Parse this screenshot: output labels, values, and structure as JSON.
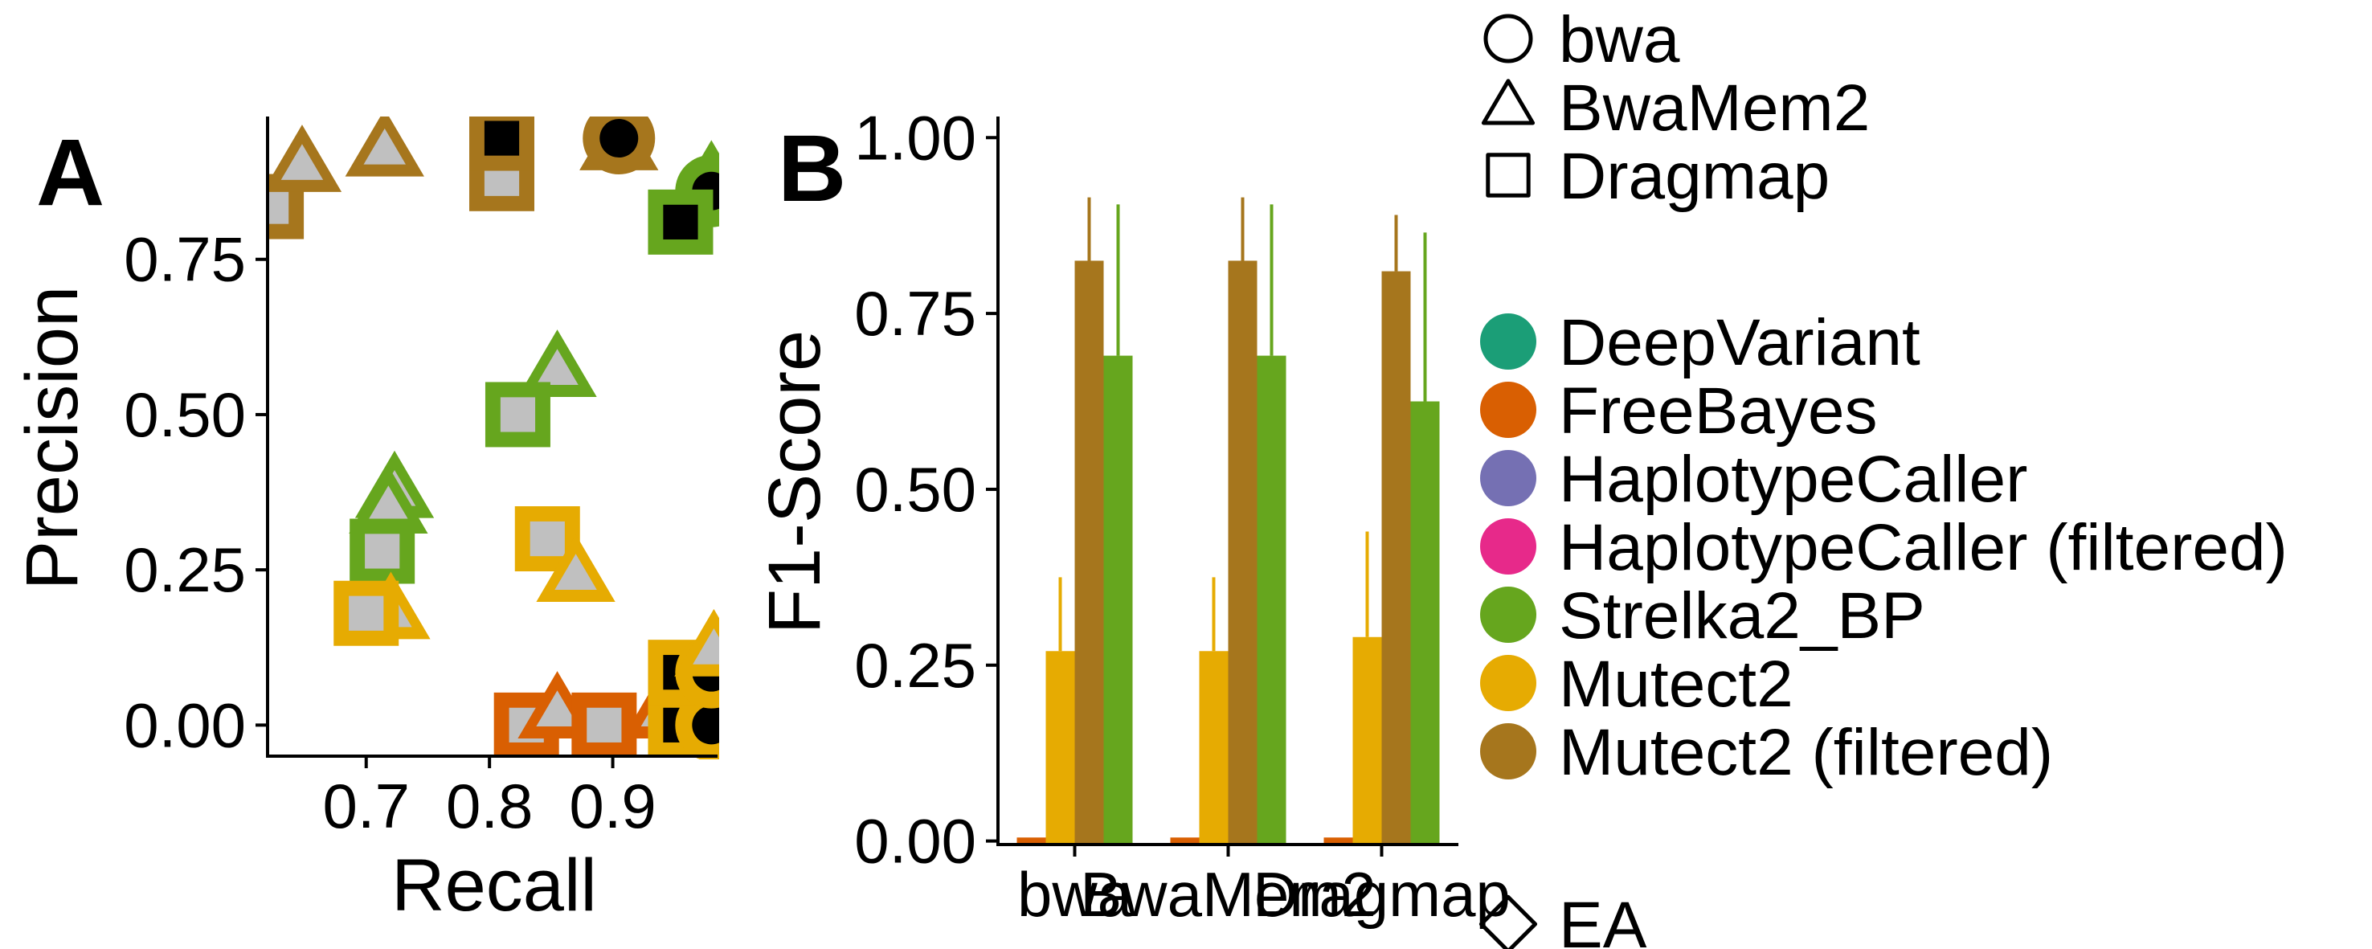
{
  "figure": {
    "panels": [
      {
        "id": "A",
        "label": "A"
      },
      {
        "id": "B",
        "label": "B"
      }
    ]
  },
  "chart_data": [
    {
      "id": "A",
      "type": "scatter",
      "title": "",
      "xlabel": "Recall",
      "ylabel": "Precision",
      "xlim": [
        0.62,
        0.985
      ],
      "ylim": [
        -0.05,
        0.98
      ],
      "xticks": [
        0.7,
        0.8,
        0.9
      ],
      "xtick_labels": [
        "0.7",
        "0.8",
        "0.9"
      ],
      "yticks": [
        0,
        0.25,
        0.5,
        0.75
      ],
      "ytick_labels": [
        "0.00",
        "0.25",
        "0.50",
        "0.75"
      ],
      "grid": false,
      "points": [
        {
          "caller": "Mutect2 (filtered)",
          "aligner": "Dragmap",
          "dataset": "EA",
          "x": 0.623,
          "y": 0.835
        },
        {
          "caller": "Mutect2 (filtered)",
          "aligner": "BwaMem2",
          "dataset": "EA",
          "x": 0.648,
          "y": 0.9
        },
        {
          "caller": "Mutect2 (filtered)",
          "aligner": "BwaMem2",
          "dataset": "EA",
          "x": 0.715,
          "y": 0.925
        },
        {
          "caller": "Mutect2 (filtered)",
          "aligner": "Dragmap",
          "dataset": "EA",
          "x": 0.81,
          "y": 0.88
        },
        {
          "caller": "Mutect2 (filtered)",
          "aligner": "Dragmap",
          "dataset": "other",
          "x": 0.81,
          "y": 0.945
        },
        {
          "caller": "Mutect2 (filtered)",
          "aligner": "BwaMem2",
          "dataset": "EA",
          "x": 0.905,
          "y": 0.935
        },
        {
          "caller": "Mutect2 (filtered)",
          "aligner": "bwa",
          "dataset": "other",
          "x": 0.905,
          "y": 0.945
        },
        {
          "caller": "Strelka2_BP",
          "aligner": "BwaMem2",
          "dataset": "EA",
          "x": 0.98,
          "y": 0.875
        },
        {
          "caller": "Strelka2_BP",
          "aligner": "bwa",
          "dataset": "other",
          "x": 0.98,
          "y": 0.86
        },
        {
          "caller": "Strelka2_BP",
          "aligner": "Dragmap",
          "dataset": "other",
          "x": 0.955,
          "y": 0.81
        },
        {
          "caller": "Strelka2_BP",
          "aligner": "BwaMem2",
          "dataset": "EA",
          "x": 0.855,
          "y": 0.57
        },
        {
          "caller": "Strelka2_BP",
          "aligner": "Dragmap",
          "dataset": "EA",
          "x": 0.823,
          "y": 0.5
        },
        {
          "caller": "Strelka2_BP",
          "aligner": "BwaMem2",
          "dataset": "EA",
          "x": 0.723,
          "y": 0.375
        },
        {
          "caller": "Strelka2_BP",
          "aligner": "BwaMem2",
          "dataset": "EA",
          "x": 0.718,
          "y": 0.35
        },
        {
          "caller": "Strelka2_BP",
          "aligner": "Dragmap",
          "dataset": "EA",
          "x": 0.713,
          "y": 0.28
        },
        {
          "caller": "Mutect2",
          "aligner": "Dragmap",
          "dataset": "EA",
          "x": 0.847,
          "y": 0.3
        },
        {
          "caller": "Mutect2",
          "aligner": "BwaMem2",
          "dataset": "EA",
          "x": 0.87,
          "y": 0.24
        },
        {
          "caller": "Mutect2",
          "aligner": "BwaMem2",
          "dataset": "EA",
          "x": 0.72,
          "y": 0.18
        },
        {
          "caller": "Mutect2",
          "aligner": "Dragmap",
          "dataset": "EA",
          "x": 0.7,
          "y": 0.18
        },
        {
          "caller": "FreeBayes",
          "aligner": "Dragmap",
          "dataset": "EA",
          "x": 0.83,
          "y": 0.0
        },
        {
          "caller": "FreeBayes",
          "aligner": "BwaMem2",
          "dataset": "EA",
          "x": 0.855,
          "y": 0.02
        },
        {
          "caller": "FreeBayes",
          "aligner": "Dragmap",
          "dataset": "EA",
          "x": 0.893,
          "y": 0.0
        },
        {
          "caller": "FreeBayes",
          "aligner": "BwaMem2",
          "dataset": "EA",
          "x": 0.94,
          "y": 0.02
        },
        {
          "caller": "Mutect2",
          "aligner": "Dragmap",
          "dataset": "other",
          "x": 0.955,
          "y": 0.0
        },
        {
          "caller": "Mutect2",
          "aligner": "bwa",
          "dataset": "other",
          "x": 0.98,
          "y": 0.0
        },
        {
          "caller": "Mutect2",
          "aligner": "Dragmap",
          "dataset": "other",
          "x": 0.955,
          "y": 0.085
        },
        {
          "caller": "Mutect2",
          "aligner": "bwa",
          "dataset": "other",
          "x": 0.98,
          "y": 0.085
        },
        {
          "caller": "Mutect2",
          "aligner": "BwaMem2",
          "dataset": "EA",
          "x": 0.982,
          "y": 0.12
        }
      ]
    },
    {
      "id": "B",
      "type": "bar",
      "title": "",
      "xlabel": "",
      "ylabel": "F1-Score",
      "ylim": [
        -0.005,
        1.03
      ],
      "yticks": [
        0,
        0.25,
        0.5,
        0.75,
        1.0
      ],
      "ytick_labels": [
        "0.00",
        "0.25",
        "0.50",
        "0.75",
        "1.00"
      ],
      "categories": [
        "bwa",
        "BwaMem2",
        "Dragmap"
      ],
      "grid": false,
      "series": [
        {
          "name": "FreeBayes",
          "color": "#D95F02",
          "values": [
            0.005,
            0.005,
            0.005
          ],
          "err_high": [
            null,
            null,
            null
          ]
        },
        {
          "name": "Mutect2",
          "color": "#E6AB02",
          "values": [
            0.27,
            0.27,
            0.29
          ],
          "err_high": [
            0.375,
            0.375,
            0.44
          ]
        },
        {
          "name": "Mutect2 (filtered)",
          "color": "#A6761D",
          "values": [
            0.825,
            0.825,
            0.81
          ],
          "err_high": [
            0.915,
            0.915,
            0.89
          ]
        },
        {
          "name": "Strelka2_BP",
          "color": "#66A61E",
          "values": [
            0.69,
            0.69,
            0.625
          ],
          "err_high": [
            0.905,
            0.905,
            0.865
          ]
        }
      ]
    }
  ],
  "legend": {
    "shapes": [
      {
        "label": "bwa",
        "shape": "circle"
      },
      {
        "label": "BwaMem2",
        "shape": "triangle"
      },
      {
        "label": "Dragmap",
        "shape": "square"
      }
    ],
    "callers": [
      {
        "label": "DeepVariant",
        "color": "#1B9E77"
      },
      {
        "label": "FreeBayes",
        "color": "#D95F02"
      },
      {
        "label": "HaplotypeCaller",
        "color": "#7570B3"
      },
      {
        "label": "HaplotypeCaller (filtered)",
        "color": "#E7298A"
      },
      {
        "label": "Strelka2_BP",
        "color": "#66A61E"
      },
      {
        "label": "Mutect2",
        "color": "#E6AB02"
      },
      {
        "label": "Mutect2 (filtered)",
        "color": "#A6761D"
      }
    ],
    "dataset": [
      {
        "label": "EA",
        "shape": "diamond"
      }
    ]
  }
}
